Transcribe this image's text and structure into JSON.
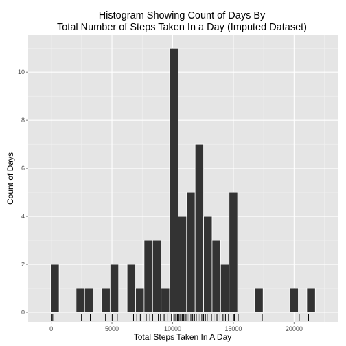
{
  "chart_data": {
    "type": "bar",
    "title_line1": "Histogram Showing Count of Days By",
    "title_line2": "Total Number of Steps Taken In a Day (Imputed Dataset)",
    "xlabel": "Total Steps Taken In A Day",
    "ylabel": "Count of Days",
    "xlim": [
      -1900,
      23600
    ],
    "ylim": [
      -0.4,
      11.55
    ],
    "x_ticks": [
      0,
      5000,
      10000,
      15000,
      20000
    ],
    "x_tick_labels": [
      "0",
      "5000",
      "10000",
      "15000",
      "20000"
    ],
    "y_ticks": [
      0,
      2,
      4,
      6,
      8,
      10
    ],
    "y_tick_labels": [
      "0",
      "2",
      "4",
      "6",
      "8",
      "10"
    ],
    "bin_width": 700,
    "bins": [
      {
        "x": 300,
        "count": 2
      },
      {
        "x": 2400,
        "count": 1
      },
      {
        "x": 3100,
        "count": 1
      },
      {
        "x": 4500,
        "count": 1
      },
      {
        "x": 5200,
        "count": 2
      },
      {
        "x": 6600,
        "count": 2
      },
      {
        "x": 7300,
        "count": 1
      },
      {
        "x": 8000,
        "count": 3
      },
      {
        "x": 8700,
        "count": 3
      },
      {
        "x": 9400,
        "count": 1
      },
      {
        "x": 10100,
        "count": 11
      },
      {
        "x": 10800,
        "count": 4
      },
      {
        "x": 11500,
        "count": 5
      },
      {
        "x": 12200,
        "count": 7
      },
      {
        "x": 12900,
        "count": 4
      },
      {
        "x": 13600,
        "count": 3
      },
      {
        "x": 14300,
        "count": 2
      },
      {
        "x": 15000,
        "count": 5
      },
      {
        "x": 17100,
        "count": 1
      },
      {
        "x": 20000,
        "count": 1
      },
      {
        "x": 21400,
        "count": 1
      }
    ],
    "rug": [
      41,
      126,
      2492,
      3219,
      4472,
      5018,
      5441,
      6778,
      7047,
      7336,
      7828,
      8118,
      8334,
      8355,
      8821,
      9000,
      9300,
      9600,
      9900,
      10100,
      10200,
      10300,
      10400,
      10500,
      10600,
      10700,
      10800,
      10900,
      11000,
      11100,
      11200,
      11350,
      11500,
      11650,
      11800,
      11950,
      12100,
      12250,
      12400,
      12550,
      12700,
      12850,
      13000,
      13200,
      13400,
      13650,
      13900,
      14150,
      14350,
      14600,
      15050,
      15100,
      15400,
      17382,
      20427,
      21194
    ],
    "grid": true,
    "colors": {
      "panel_bg": "#e5e5e5",
      "grid_major": "#ffffff",
      "grid_minor": "#f2f2f2",
      "bar_fill": "#333333",
      "bar_edge": "#ffffff",
      "rug": "#000000",
      "tick_text": "#4d4d4d"
    }
  }
}
